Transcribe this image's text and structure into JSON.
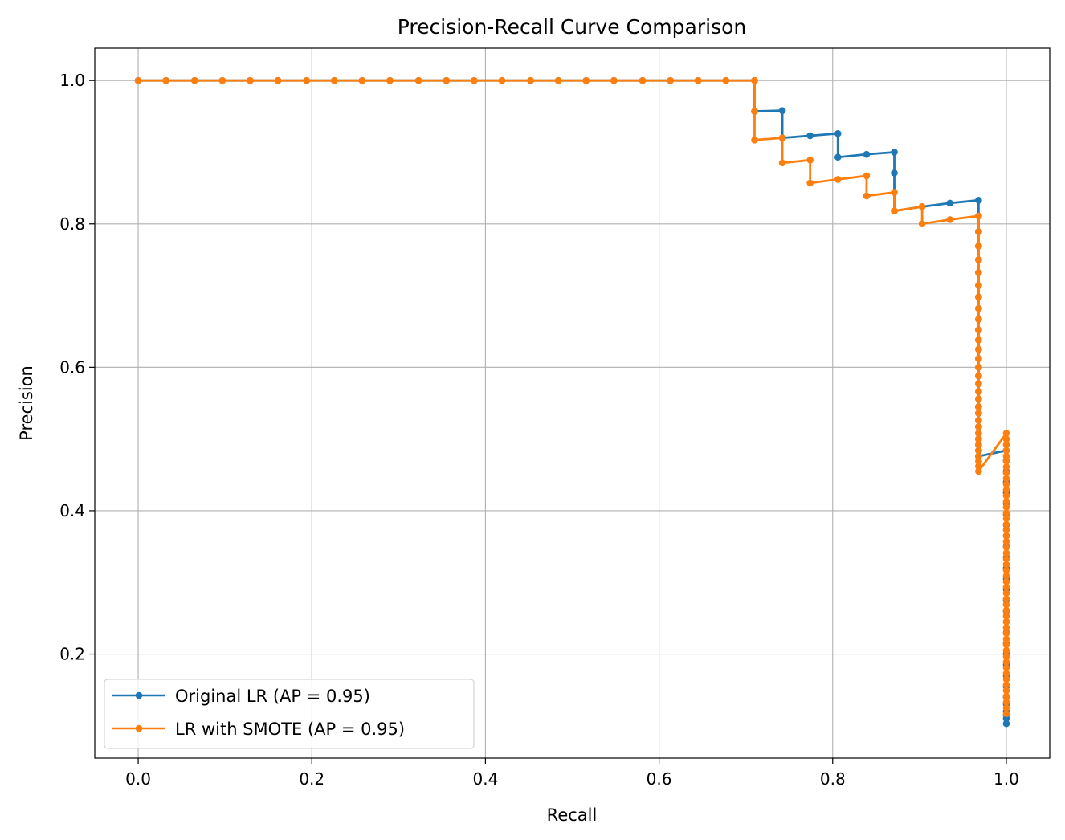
{
  "chart_data": {
    "type": "line",
    "title": "Precision-Recall Curve Comparison",
    "xlabel": "Recall",
    "ylabel": "Precision",
    "xlim": [
      -0.05,
      1.05
    ],
    "ylim": [
      0.055,
      1.045
    ],
    "xticks": [
      0.0,
      0.2,
      0.4,
      0.6,
      0.8,
      1.0
    ],
    "xtick_labels": [
      "0.0",
      "0.2",
      "0.4",
      "0.6",
      "0.8",
      "1.0"
    ],
    "yticks": [
      0.2,
      0.4,
      0.6,
      0.8,
      1.0
    ],
    "ytick_labels": [
      "0.2",
      "0.4",
      "0.6",
      "0.8",
      "1.0"
    ],
    "grid": true,
    "legend_position": "lower-left",
    "markers": "dot",
    "series": [
      {
        "name": "Original LR (AP = 0.95)",
        "color": "#1f77b4",
        "recall": [
          0.0,
          0.032,
          0.065,
          0.097,
          0.129,
          0.161,
          0.194,
          0.226,
          0.258,
          0.29,
          0.323,
          0.355,
          0.387,
          0.419,
          0.452,
          0.484,
          0.516,
          0.548,
          0.581,
          0.613,
          0.645,
          0.677,
          0.71,
          0.71,
          0.742,
          0.742,
          0.774,
          0.806,
          0.806,
          0.839,
          0.871,
          0.871,
          0.871,
          0.903,
          0.935,
          0.968,
          0.968,
          0.968,
          0.968,
          0.968,
          0.968,
          0.968,
          0.968,
          0.968,
          0.968,
          0.968,
          0.968,
          0.968,
          0.968,
          0.968,
          0.968,
          0.968,
          0.968,
          0.968,
          0.968,
          0.968,
          0.968,
          0.968,
          0.968,
          0.968,
          0.968,
          0.968,
          0.968,
          0.968,
          1.0,
          1.0,
          1.0,
          1.0,
          1.0,
          1.0,
          1.0,
          1.0,
          1.0,
          1.0,
          1.0,
          1.0,
          1.0,
          1.0,
          1.0,
          1.0,
          1.0,
          1.0,
          1.0,
          1.0,
          1.0,
          1.0,
          1.0,
          1.0,
          1.0,
          1.0,
          1.0,
          1.0,
          1.0
        ],
        "precision": [
          1.0,
          1.0,
          1.0,
          1.0,
          1.0,
          1.0,
          1.0,
          1.0,
          1.0,
          1.0,
          1.0,
          1.0,
          1.0,
          1.0,
          1.0,
          1.0,
          1.0,
          1.0,
          1.0,
          1.0,
          1.0,
          1.0,
          1.0,
          0.957,
          0.958,
          0.92,
          0.923,
          0.926,
          0.893,
          0.897,
          0.9,
          0.871,
          0.818,
          0.824,
          0.829,
          0.833,
          0.811,
          0.789,
          0.769,
          0.75,
          0.732,
          0.714,
          0.698,
          0.682,
          0.667,
          0.652,
          0.638,
          0.625,
          0.612,
          0.6,
          0.588,
          0.577,
          0.566,
          0.556,
          0.545,
          0.536,
          0.526,
          0.517,
          0.508,
          0.5,
          0.492,
          0.484,
          0.476,
          0.476,
          0.484,
          0.47,
          0.455,
          0.44,
          0.425,
          0.41,
          0.395,
          0.38,
          0.365,
          0.35,
          0.335,
          0.32,
          0.305,
          0.29,
          0.275,
          0.26,
          0.245,
          0.23,
          0.215,
          0.2,
          0.185,
          0.17,
          0.155,
          0.14,
          0.13,
          0.12,
          0.115,
          0.11,
          0.103
        ]
      },
      {
        "name": "LR with SMOTE (AP = 0.95)",
        "color": "#ff7f0e",
        "recall": [
          0.0,
          0.032,
          0.065,
          0.097,
          0.129,
          0.161,
          0.194,
          0.226,
          0.258,
          0.29,
          0.323,
          0.355,
          0.387,
          0.419,
          0.452,
          0.484,
          0.516,
          0.548,
          0.581,
          0.613,
          0.645,
          0.677,
          0.71,
          0.71,
          0.71,
          0.742,
          0.742,
          0.774,
          0.774,
          0.806,
          0.839,
          0.839,
          0.871,
          0.871,
          0.903,
          0.903,
          0.935,
          0.968,
          0.968,
          0.968,
          0.968,
          0.968,
          0.968,
          0.968,
          0.968,
          0.968,
          0.968,
          0.968,
          0.968,
          0.968,
          0.968,
          0.968,
          0.968,
          0.968,
          0.968,
          0.968,
          0.968,
          0.968,
          0.968,
          0.968,
          0.968,
          0.968,
          0.968,
          0.968,
          0.968,
          0.968,
          0.968,
          1.0,
          1.0,
          1.0,
          1.0,
          1.0,
          1.0,
          1.0,
          1.0,
          1.0,
          1.0,
          1.0,
          1.0,
          1.0,
          1.0,
          1.0,
          1.0,
          1.0,
          1.0,
          1.0,
          1.0,
          1.0,
          1.0,
          1.0,
          1.0,
          1.0,
          1.0,
          1.0,
          1.0,
          1.0,
          1.0,
          1.0,
          1.0,
          1.0,
          1.0,
          1.0,
          1.0,
          1.0,
          1.0,
          1.0,
          1.0,
          1.0,
          1.0,
          1.0,
          1.0,
          1.0,
          1.0,
          1.0,
          1.0,
          1.0,
          1.0
        ],
        "precision": [
          1.0,
          1.0,
          1.0,
          1.0,
          1.0,
          1.0,
          1.0,
          1.0,
          1.0,
          1.0,
          1.0,
          1.0,
          1.0,
          1.0,
          1.0,
          1.0,
          1.0,
          1.0,
          1.0,
          1.0,
          1.0,
          1.0,
          1.0,
          0.957,
          0.917,
          0.92,
          0.885,
          0.889,
          0.857,
          0.862,
          0.867,
          0.839,
          0.844,
          0.818,
          0.824,
          0.8,
          0.806,
          0.811,
          0.789,
          0.769,
          0.75,
          0.732,
          0.714,
          0.698,
          0.682,
          0.667,
          0.652,
          0.638,
          0.625,
          0.612,
          0.6,
          0.588,
          0.577,
          0.566,
          0.556,
          0.545,
          0.536,
          0.526,
          0.517,
          0.508,
          0.5,
          0.492,
          0.484,
          0.476,
          0.469,
          0.462,
          0.455,
          0.508,
          0.5,
          0.492,
          0.484,
          0.476,
          0.469,
          0.461,
          0.453,
          0.445,
          0.437,
          0.429,
          0.421,
          0.413,
          0.405,
          0.397,
          0.389,
          0.381,
          0.373,
          0.365,
          0.357,
          0.349,
          0.341,
          0.333,
          0.325,
          0.317,
          0.309,
          0.301,
          0.293,
          0.285,
          0.277,
          0.269,
          0.261,
          0.253,
          0.245,
          0.237,
          0.229,
          0.221,
          0.213,
          0.205,
          0.197,
          0.189,
          0.181,
          0.173,
          0.165,
          0.157,
          0.149,
          0.141,
          0.133,
          0.125,
          0.117,
          0.109,
          0.103
        ]
      }
    ]
  }
}
